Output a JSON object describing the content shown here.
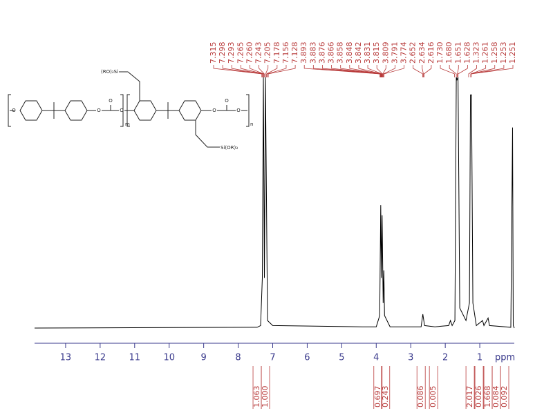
{
  "chart_data": {
    "type": "nmr",
    "x_label": "ppm",
    "xlim": [
      13.9,
      0
    ],
    "xticks": [
      13,
      12,
      11,
      10,
      9,
      8,
      7,
      6,
      5,
      4,
      3,
      2,
      1
    ],
    "ylim": [
      0,
      100
    ],
    "color": "#000000",
    "x": [
      13.9,
      7.45,
      7.35,
      7.3,
      7.27,
      7.24,
      7.21,
      7.15,
      7.0,
      4.4,
      4.0,
      3.9,
      3.87,
      3.85,
      3.83,
      3.8,
      3.78,
      3.76,
      3.6,
      2.7,
      2.65,
      2.6,
      2.3,
      1.9,
      1.85,
      1.8,
      1.72,
      1.68,
      1.66,
      1.63,
      1.58,
      1.4,
      1.3,
      1.27,
      1.24,
      1.2,
      1.1,
      0.92,
      0.88,
      0.76,
      0.72,
      0.1,
      0.05,
      0.03,
      0
    ],
    "values": [
      0,
      0.3,
      1,
      20,
      100,
      20,
      100,
      3,
      1,
      0.5,
      0.5,
      5,
      49,
      20,
      45,
      10,
      23,
      5,
      0.5,
      0.5,
      5.5,
      1,
      0.5,
      1,
      3,
      1,
      3,
      100,
      99,
      100,
      8,
      3,
      10,
      93,
      93,
      10,
      1,
      3,
      1,
      4,
      1,
      0.3,
      80,
      1,
      0
    ],
    "peak_labels": [
      7.315,
      7.298,
      7.293,
      7.265,
      {
        "value": 7.26,
        "label": "7.260"
      },
      7.243,
      7.205,
      7.178,
      7.156,
      7.128,
      3.893,
      3.883,
      3.876,
      3.866,
      3.858,
      3.848,
      3.842,
      3.831,
      3.815,
      3.809,
      3.791,
      3.774,
      2.652,
      2.634,
      2.616,
      {
        "value": 1.73,
        "label": "1.730"
      },
      {
        "value": 1.68,
        "label": "1.680"
      },
      1.651,
      1.628,
      1.323,
      1.261,
      1.258,
      1.253,
      1.251
    ],
    "integrals": [
      {
        "value": 1.063,
        "x": 7.45
      },
      {
        "value": 1.0,
        "label": "1.000",
        "x": 7.21
      },
      {
        "value": 0.697,
        "x": 3.95
      },
      {
        "value": 0.243,
        "x": 3.73
      },
      {
        "value": 0.086,
        "x": 2.7
      },
      {
        "value": 0.005,
        "x": 2.34
      },
      {
        "value": 2.017,
        "x": 1.28
      },
      {
        "value": 0.026,
        "x": 1.02
      },
      {
        "value": 1.668,
        "x": 0.76
      },
      {
        "value": 0.084,
        "x": 0.52
      },
      {
        "value": 0.092,
        "x": 0.28
      }
    ]
  },
  "structure": {
    "substituent_labels": [
      "(RO)₃Si",
      "Si(OR)₃"
    ],
    "repeat_labels": [
      "m",
      "n"
    ],
    "atom_labels": [
      "O",
      "O",
      "O",
      "O",
      "O",
      "O",
      "O"
    ]
  }
}
